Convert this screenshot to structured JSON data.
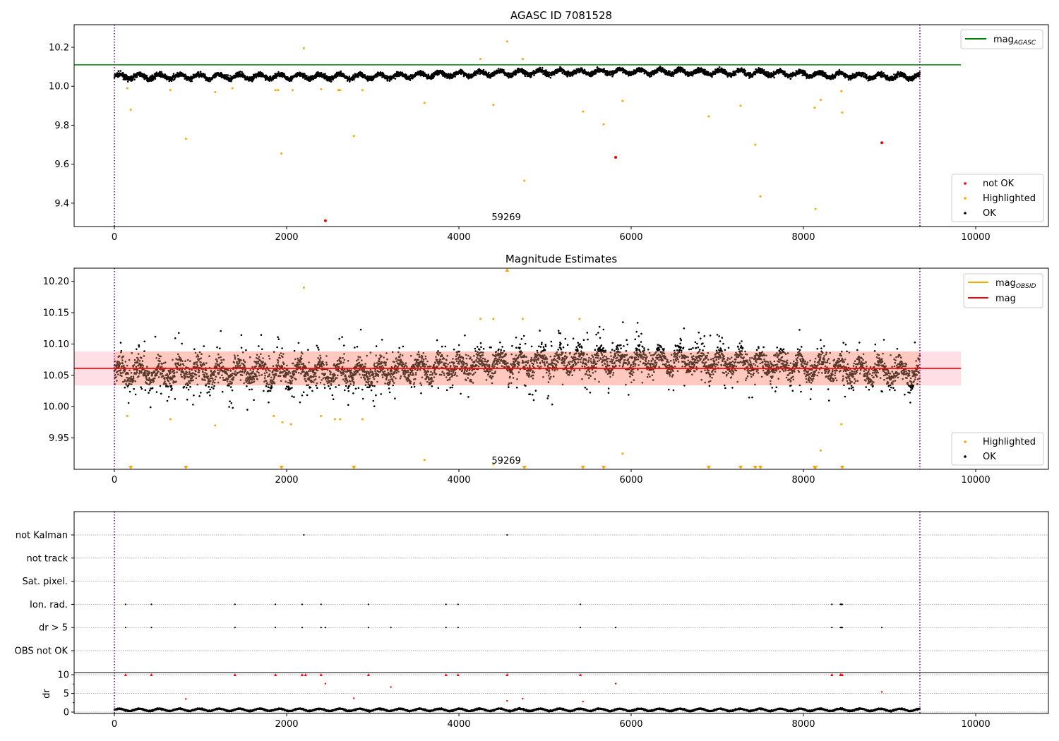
{
  "chart_data": [
    {
      "type": "scatter",
      "title": "AGASC ID 7081528",
      "xlim": [
        -467,
        10844
      ],
      "ylim": [
        9.28,
        10.316
      ],
      "xticks": [
        0,
        2000,
        4000,
        6000,
        8000,
        10000
      ],
      "yticks": [
        9.4,
        9.6,
        9.8,
        10.0,
        10.2
      ],
      "ytick_labels": [
        "9.4",
        "9.6",
        "9.8",
        "10.0",
        "10.2"
      ],
      "vlines": [
        0,
        9352
      ],
      "hline": {
        "label": "mag",
        "sub": "AGASC",
        "value": 10.11,
        "color": "#008000",
        "x": [
          -467,
          9828
        ]
      },
      "annotation": {
        "text": "59269",
        "x": 4550
      },
      "legend_top": [
        {
          "label": "mag",
          "sub": "AGASC"
        }
      ],
      "legend_bottom": [
        "not OK",
        "Highlighted",
        "OK"
      ],
      "ok_series": {
        "x_range": [
          0,
          9352
        ],
        "n": 4700,
        "mean": 10.05,
        "spread": 0.02,
        "trend": 0.025
      },
      "highlighted": [
        [
          190,
          9.88
        ],
        [
          150,
          9.99
        ],
        [
          650,
          9.98
        ],
        [
          830,
          9.73
        ],
        [
          1170,
          9.97
        ],
        [
          1370,
          9.99
        ],
        [
          1870,
          9.98
        ],
        [
          1900,
          9.98
        ],
        [
          1940,
          9.655
        ],
        [
          2070,
          9.98
        ],
        [
          2200,
          10.195
        ],
        [
          2400,
          9.985
        ],
        [
          2600,
          9.98
        ],
        [
          2620,
          9.98
        ],
        [
          2780,
          9.745
        ],
        [
          2880,
          9.98
        ],
        [
          3600,
          9.915
        ],
        [
          4250,
          10.14
        ],
        [
          4400,
          9.905
        ],
        [
          4560,
          10.23
        ],
        [
          4740,
          10.14
        ],
        [
          4760,
          9.515
        ],
        [
          5440,
          9.87
        ],
        [
          5680,
          9.805
        ],
        [
          5900,
          9.925
        ],
        [
          6900,
          9.845
        ],
        [
          7270,
          9.9
        ],
        [
          7440,
          9.7
        ],
        [
          7500,
          9.435
        ],
        [
          8130,
          9.89
        ],
        [
          8140,
          9.37
        ],
        [
          8200,
          9.93
        ],
        [
          8440,
          9.975
        ],
        [
          8450,
          9.865
        ]
      ],
      "not_ok": [
        [
          2450,
          9.31
        ],
        [
          5820,
          9.635
        ],
        [
          8910,
          9.71
        ]
      ]
    },
    {
      "type": "scatter",
      "title": "Magnitude Estimates",
      "xlim": [
        -467,
        10844
      ],
      "ylim": [
        9.9,
        10.221
      ],
      "xticks": [
        0,
        2000,
        4000,
        6000,
        8000,
        10000
      ],
      "yticks": [
        9.95,
        10.0,
        10.05,
        10.1,
        10.15,
        10.2
      ],
      "ytick_labels": [
        "9.95",
        "10.00",
        "10.05",
        "10.10",
        "10.15",
        "10.20"
      ],
      "vlines": [
        0,
        9352
      ],
      "mag": 10.061,
      "band": [
        10.034,
        10.088
      ],
      "band_x": [
        -467,
        9828
      ],
      "annotation": {
        "text": "59269",
        "x": 4550
      },
      "legend_top": [
        {
          "label": "mag",
          "sub": "OBSID",
          "color": "#ffa500"
        },
        {
          "label": "mag",
          "sub": "",
          "color": "#ff0000"
        }
      ],
      "legend_bottom": [
        "Highlighted",
        "OK"
      ],
      "ok_series": {
        "x_range": [
          0,
          9352
        ],
        "n": 4700,
        "mean": 10.055,
        "spread": 0.05,
        "trend": 0.02
      },
      "highlighted": [
        [
          150,
          9.985
        ],
        [
          650,
          9.98
        ],
        [
          1170,
          9.97
        ],
        [
          1850,
          9.985
        ],
        [
          1950,
          9.975
        ],
        [
          2050,
          9.972
        ],
        [
          2200,
          10.19
        ],
        [
          2400,
          9.985
        ],
        [
          2560,
          9.98
        ],
        [
          2620,
          9.98
        ],
        [
          2880,
          9.98
        ],
        [
          3600,
          9.915
        ],
        [
          4250,
          10.14
        ],
        [
          4400,
          10.14
        ],
        [
          4400,
          9.908
        ],
        [
          4740,
          10.14
        ],
        [
          5400,
          10.14
        ],
        [
          5900,
          9.925
        ],
        [
          8200,
          9.93
        ],
        [
          8440,
          9.972
        ]
      ],
      "below_range": [
        190,
        830,
        1940,
        2780,
        4760,
        5440,
        5680,
        6900,
        7270,
        7440,
        7500,
        8130,
        8140,
        8450
      ],
      "above_range": [
        4560
      ]
    },
    {
      "type": "scatter",
      "title": "",
      "xlim": [
        -467,
        10844
      ],
      "xticks": [
        0,
        2000,
        4000,
        6000,
        8000,
        10000
      ],
      "categories": [
        "not Kalman",
        "not track",
        "Sat. pixel.",
        "Ion. rad.",
        "dr > 5",
        "OBS not OK"
      ],
      "flags": {
        "not Kalman": [
          2200,
          4560
        ],
        "not track": [],
        "Sat. pixel.": [],
        "Ion. rad.": [
          130,
          430,
          1400,
          1870,
          2180,
          2400,
          2950,
          3850,
          3990,
          5410,
          8330,
          8430,
          8440,
          8450
        ],
        "dr > 5": [
          130,
          430,
          1400,
          1870,
          2180,
          2400,
          2450,
          2950,
          3210,
          3850,
          3990,
          5410,
          5820,
          8330,
          8430,
          8440,
          8450,
          8910
        ],
        "OBS not OK": []
      }
    },
    {
      "type": "scatter",
      "title": "",
      "ylabel": "dr",
      "ylim": [
        -0.38,
        10.57
      ],
      "yticks": [
        0,
        5,
        10
      ],
      "ytick_labels": [
        "0",
        "5",
        "10"
      ],
      "xlim": [
        -467,
        10844
      ],
      "xticks": [
        0,
        2000,
        4000,
        6000,
        8000,
        10000
      ],
      "xtick_labels": [
        "0",
        "2000",
        "4000",
        "6000",
        "8000",
        "10000"
      ],
      "clipped_at_10": [
        130,
        430,
        1400,
        1870,
        2180,
        2220,
        2400,
        2950,
        3850,
        3990,
        4560,
        5410,
        8330,
        8430,
        8450
      ],
      "red_points": [
        [
          830,
          3.5
        ],
        [
          2450,
          7.6
        ],
        [
          2780,
          3.7
        ],
        [
          3210,
          6.7
        ],
        [
          4560,
          3
        ],
        [
          4740,
          3.6
        ],
        [
          5440,
          2.8
        ],
        [
          5820,
          7.6
        ],
        [
          8910,
          5.4
        ]
      ],
      "ok_series": {
        "x_range": [
          0,
          9352
        ],
        "n": 4700,
        "mean": 0.6,
        "spread": 0.3
      }
    }
  ]
}
